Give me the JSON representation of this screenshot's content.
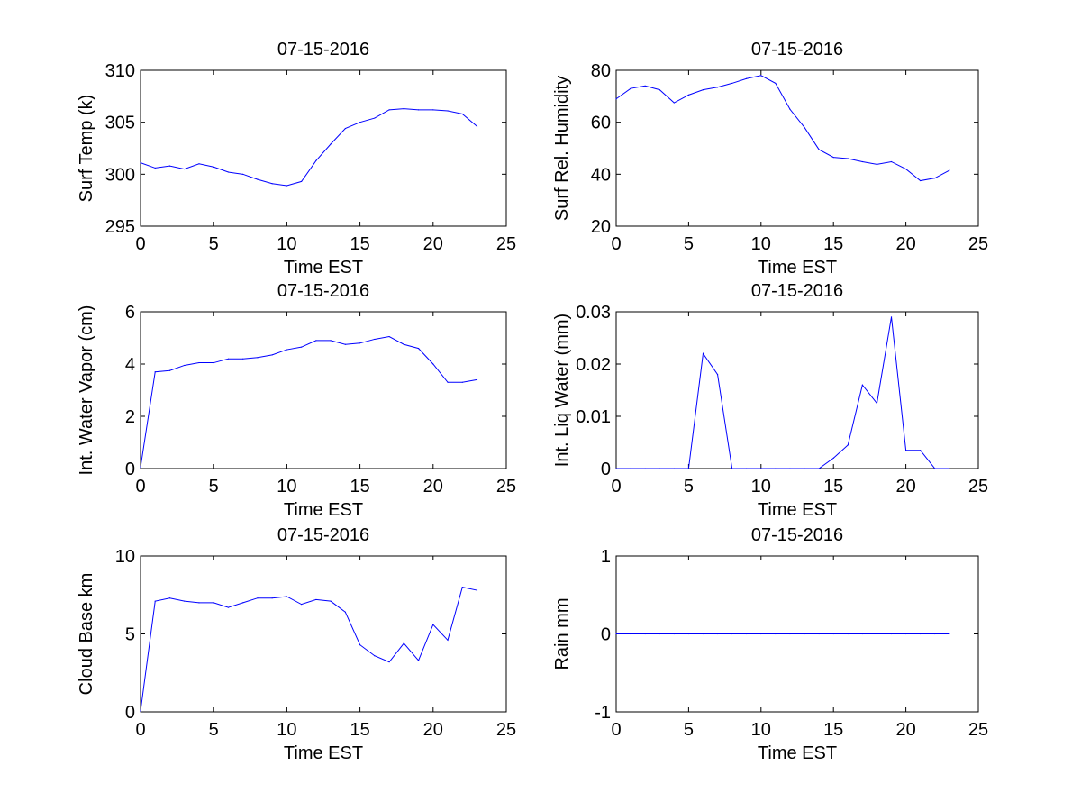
{
  "chart_data": [
    {
      "type": "line",
      "title": "07-15-2016",
      "xlabel": "Time EST",
      "ylabel": "Surf Temp (k)",
      "xlim": [
        0,
        25
      ],
      "ylim": [
        295,
        310
      ],
      "xticks": [
        0,
        5,
        10,
        15,
        20,
        25
      ],
      "yticks": [
        295,
        300,
        305,
        310
      ],
      "x": [
        0,
        1,
        2,
        3,
        4,
        5,
        6,
        7,
        8,
        9,
        10,
        11,
        12,
        13,
        14,
        15,
        16,
        17,
        18,
        19,
        20,
        21,
        22,
        23
      ],
      "series": [
        {
          "values": [
            301.1,
            300.6,
            300.8,
            300.5,
            301.0,
            300.7,
            300.2,
            300.0,
            299.5,
            299.1,
            298.9,
            299.3,
            301.3,
            302.9,
            304.4,
            305.0,
            305.4,
            306.2,
            306.3,
            306.2,
            306.2,
            306.1,
            305.8,
            304.6
          ]
        }
      ]
    },
    {
      "type": "line",
      "title": "07-15-2016",
      "xlabel": "Time EST",
      "ylabel": "Surf Rel. Humidity",
      "xlim": [
        0,
        25
      ],
      "ylim": [
        20,
        80
      ],
      "xticks": [
        0,
        5,
        10,
        15,
        20,
        25
      ],
      "yticks": [
        20,
        40,
        60,
        80
      ],
      "x": [
        0,
        1,
        2,
        3,
        4,
        5,
        6,
        7,
        8,
        9,
        10,
        11,
        12,
        13,
        14,
        15,
        16,
        17,
        18,
        19,
        20,
        21,
        22,
        23
      ],
      "series": [
        {
          "values": [
            69.0,
            73.0,
            74.0,
            72.5,
            67.5,
            70.5,
            72.5,
            73.5,
            75.0,
            76.8,
            78.0,
            75.0,
            65.0,
            58.0,
            49.5,
            46.5,
            46.0,
            44.8,
            43.8,
            44.8,
            42.0,
            37.5,
            38.5,
            41.5
          ]
        }
      ]
    },
    {
      "type": "line",
      "title": "07-15-2016",
      "xlabel": "Time EST",
      "ylabel": "Int. Water Vapor (cm)",
      "xlim": [
        0,
        25
      ],
      "ylim": [
        0,
        6
      ],
      "xticks": [
        0,
        5,
        10,
        15,
        20,
        25
      ],
      "yticks": [
        0,
        2,
        4,
        6
      ],
      "x": [
        0,
        1,
        2,
        3,
        4,
        5,
        6,
        7,
        8,
        9,
        10,
        11,
        12,
        13,
        14,
        15,
        16,
        17,
        18,
        19,
        20,
        21,
        22,
        23
      ],
      "series": [
        {
          "values": [
            0.05,
            3.7,
            3.75,
            3.95,
            4.05,
            4.05,
            4.2,
            4.2,
            4.25,
            4.35,
            4.55,
            4.65,
            4.9,
            4.9,
            4.75,
            4.8,
            4.95,
            5.05,
            4.75,
            4.6,
            4.0,
            3.3,
            3.3,
            3.4
          ]
        }
      ]
    },
    {
      "type": "line",
      "title": "07-15-2016",
      "xlabel": "Time EST",
      "ylabel": "Int. Liq Water (mm)",
      "xlim": [
        0,
        25
      ],
      "ylim": [
        0,
        0.03
      ],
      "xticks": [
        0,
        5,
        10,
        15,
        20,
        25
      ],
      "yticks": [
        0,
        0.01,
        0.02,
        0.03
      ],
      "x": [
        0,
        1,
        2,
        3,
        4,
        5,
        6,
        7,
        8,
        9,
        10,
        11,
        12,
        13,
        14,
        15,
        16,
        17,
        18,
        19,
        20,
        21,
        22,
        23
      ],
      "series": [
        {
          "values": [
            0,
            0,
            0,
            0,
            0,
            0,
            0.022,
            0.018,
            0,
            0,
            0,
            0,
            0,
            0,
            0,
            0.002,
            0.0045,
            0.016,
            0.0125,
            0.029,
            0.0035,
            0.0035,
            0,
            0
          ]
        }
      ]
    },
    {
      "type": "line",
      "title": "07-15-2016",
      "xlabel": "Time EST",
      "ylabel": "Cloud Base km",
      "xlim": [
        0,
        25
      ],
      "ylim": [
        0,
        10
      ],
      "xticks": [
        0,
        5,
        10,
        15,
        20,
        25
      ],
      "yticks": [
        0,
        5,
        10
      ],
      "x": [
        0,
        1,
        2,
        3,
        4,
        5,
        6,
        7,
        8,
        9,
        10,
        11,
        12,
        13,
        14,
        15,
        16,
        17,
        18,
        19,
        20,
        21,
        22,
        23
      ],
      "series": [
        {
          "values": [
            0.05,
            7.1,
            7.3,
            7.1,
            7.0,
            7.0,
            6.7,
            7.0,
            7.3,
            7.3,
            7.4,
            6.9,
            7.2,
            7.1,
            6.4,
            4.3,
            3.6,
            3.2,
            4.4,
            3.3,
            5.6,
            4.6,
            8.0,
            7.8
          ]
        }
      ]
    },
    {
      "type": "line",
      "title": "07-15-2016",
      "xlabel": "Time EST",
      "ylabel": "Rain mm",
      "xlim": [
        0,
        25
      ],
      "ylim": [
        -1,
        1
      ],
      "xticks": [
        0,
        5,
        10,
        15,
        20,
        25
      ],
      "yticks": [
        -1,
        0,
        1
      ],
      "x": [
        0,
        1,
        2,
        3,
        4,
        5,
        6,
        7,
        8,
        9,
        10,
        11,
        12,
        13,
        14,
        15,
        16,
        17,
        18,
        19,
        20,
        21,
        22,
        23
      ],
      "series": [
        {
          "values": [
            0,
            0,
            0,
            0,
            0,
            0,
            0,
            0,
            0,
            0,
            0,
            0,
            0,
            0,
            0,
            0,
            0,
            0,
            0,
            0,
            0,
            0,
            0,
            0
          ]
        }
      ]
    }
  ]
}
